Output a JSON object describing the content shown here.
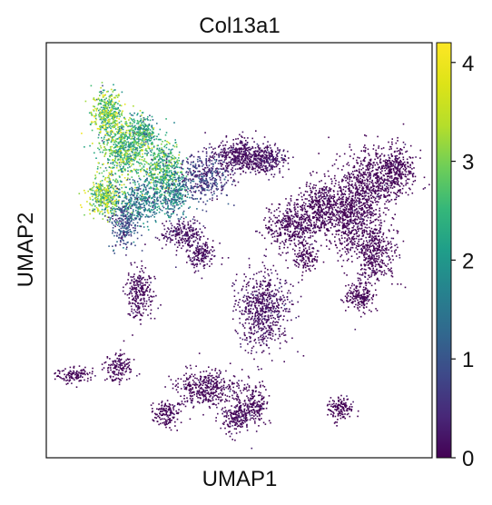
{
  "chart_data": {
    "type": "scatter",
    "title": "Col13a1",
    "xlabel": "UMAP1",
    "ylabel": "UMAP2",
    "xticks": [],
    "yticks": [],
    "grid": false,
    "legend": "none",
    "colorbar": {
      "colormap": "viridis",
      "range": [
        0,
        4.2
      ],
      "ticks": [
        "0",
        "1",
        "2",
        "3",
        "4"
      ],
      "placement": "right"
    },
    "clusters": [
      {
        "cx": 0.155,
        "cy": 0.83,
        "rx": 0.035,
        "ry": 0.055,
        "n": 420,
        "level": 2.9
      },
      {
        "cx": 0.2,
        "cy": 0.745,
        "rx": 0.05,
        "ry": 0.065,
        "n": 650,
        "level": 2.6
      },
      {
        "cx": 0.25,
        "cy": 0.79,
        "rx": 0.03,
        "ry": 0.035,
        "n": 220,
        "level": 2.3
      },
      {
        "cx": 0.3,
        "cy": 0.7,
        "rx": 0.045,
        "ry": 0.06,
        "n": 500,
        "level": 2.4
      },
      {
        "cx": 0.15,
        "cy": 0.63,
        "rx": 0.04,
        "ry": 0.04,
        "n": 380,
        "level": 3.0
      },
      {
        "cx": 0.24,
        "cy": 0.62,
        "rx": 0.06,
        "ry": 0.05,
        "n": 420,
        "level": 1.6
      },
      {
        "cx": 0.33,
        "cy": 0.635,
        "rx": 0.035,
        "ry": 0.045,
        "n": 260,
        "level": 1.5
      },
      {
        "cx": 0.2,
        "cy": 0.56,
        "rx": 0.03,
        "ry": 0.05,
        "n": 220,
        "level": 0.9
      },
      {
        "cx": 0.41,
        "cy": 0.68,
        "rx": 0.06,
        "ry": 0.05,
        "n": 380,
        "level": 0.6
      },
      {
        "cx": 0.5,
        "cy": 0.73,
        "rx": 0.06,
        "ry": 0.04,
        "n": 420,
        "level": 0.25
      },
      {
        "cx": 0.57,
        "cy": 0.72,
        "rx": 0.045,
        "ry": 0.03,
        "n": 260,
        "level": 0.3
      },
      {
        "cx": 0.35,
        "cy": 0.54,
        "rx": 0.05,
        "ry": 0.03,
        "n": 220,
        "level": 0.3
      },
      {
        "cx": 0.4,
        "cy": 0.49,
        "rx": 0.035,
        "ry": 0.03,
        "n": 170,
        "level": 0.2
      },
      {
        "cx": 0.24,
        "cy": 0.4,
        "rx": 0.03,
        "ry": 0.055,
        "n": 260,
        "level": 0.15
      },
      {
        "cx": 0.56,
        "cy": 0.36,
        "rx": 0.06,
        "ry": 0.09,
        "n": 650,
        "level": 0.25
      },
      {
        "cx": 0.64,
        "cy": 0.56,
        "rx": 0.07,
        "ry": 0.05,
        "n": 450,
        "level": 0.1
      },
      {
        "cx": 0.72,
        "cy": 0.61,
        "rx": 0.05,
        "ry": 0.06,
        "n": 420,
        "level": 0.05
      },
      {
        "cx": 0.82,
        "cy": 0.65,
        "rx": 0.06,
        "ry": 0.09,
        "n": 600,
        "level": 0.05
      },
      {
        "cx": 0.9,
        "cy": 0.69,
        "rx": 0.05,
        "ry": 0.055,
        "n": 420,
        "level": 0.05
      },
      {
        "cx": 0.85,
        "cy": 0.5,
        "rx": 0.045,
        "ry": 0.07,
        "n": 420,
        "level": 0.05
      },
      {
        "cx": 0.78,
        "cy": 0.57,
        "rx": 0.04,
        "ry": 0.08,
        "n": 320,
        "level": 0.05
      },
      {
        "cx": 0.81,
        "cy": 0.39,
        "rx": 0.035,
        "ry": 0.03,
        "n": 180,
        "level": 0.05
      },
      {
        "cx": 0.67,
        "cy": 0.48,
        "rx": 0.03,
        "ry": 0.03,
        "n": 120,
        "level": 0.05
      },
      {
        "cx": 0.075,
        "cy": 0.2,
        "rx": 0.05,
        "ry": 0.015,
        "n": 130,
        "level": 0.05
      },
      {
        "cx": 0.185,
        "cy": 0.22,
        "rx": 0.03,
        "ry": 0.03,
        "n": 150,
        "level": 0.05
      },
      {
        "cx": 0.42,
        "cy": 0.17,
        "rx": 0.08,
        "ry": 0.04,
        "n": 420,
        "level": 0.1
      },
      {
        "cx": 0.49,
        "cy": 0.1,
        "rx": 0.04,
        "ry": 0.035,
        "n": 220,
        "level": 0.15
      },
      {
        "cx": 0.31,
        "cy": 0.11,
        "rx": 0.03,
        "ry": 0.03,
        "n": 150,
        "level": 0.05
      },
      {
        "cx": 0.54,
        "cy": 0.13,
        "rx": 0.03,
        "ry": 0.04,
        "n": 150,
        "level": 0.1
      },
      {
        "cx": 0.76,
        "cy": 0.12,
        "rx": 0.03,
        "ry": 0.025,
        "n": 140,
        "level": 0.05
      }
    ]
  }
}
